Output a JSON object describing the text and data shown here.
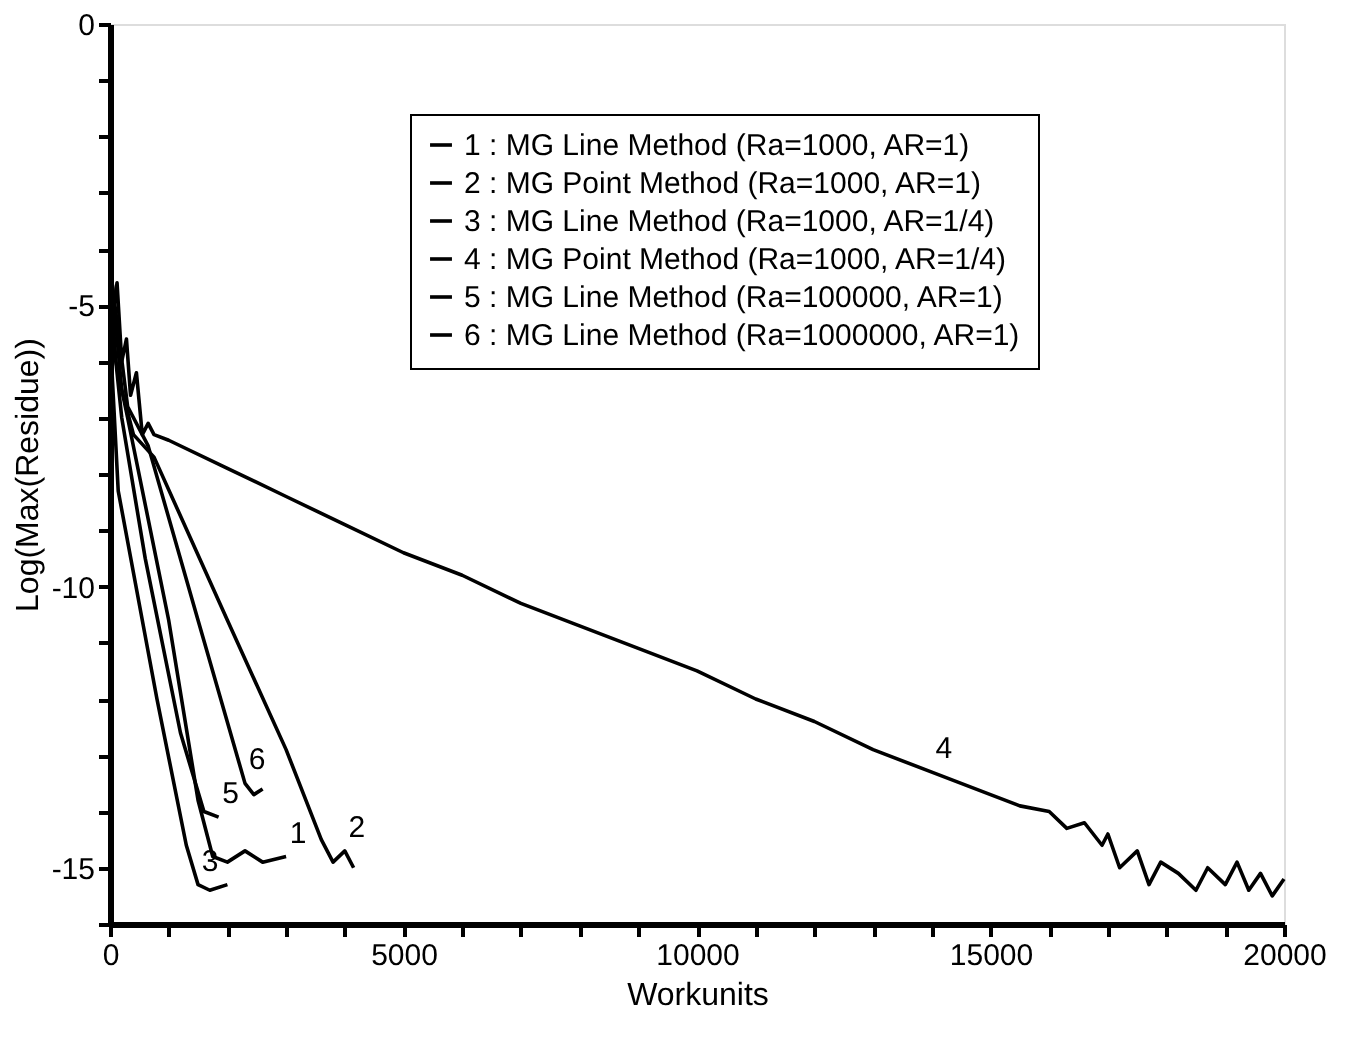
{
  "chart_data": {
    "type": "line",
    "xlabel": "Workunits",
    "ylabel": "Log(Max(Residue))",
    "xlim": [
      0,
      20000
    ],
    "xticks": [
      0,
      {
        "value": 1000,
        "label": null
      },
      {
        "value": 2000,
        "label": null
      },
      {
        "value": 3000,
        "label": null
      },
      {
        "value": 4000,
        "label": null
      },
      5000,
      {
        "value": 6000,
        "label": null
      },
      {
        "value": 7000,
        "label": null
      },
      {
        "value": 8000,
        "label": null
      },
      {
        "value": 9000,
        "label": null
      },
      10000,
      {
        "value": 11000,
        "label": null
      },
      {
        "value": 12000,
        "label": null
      },
      {
        "value": 13000,
        "label": null
      },
      {
        "value": 14000,
        "label": null
      },
      15000,
      {
        "value": 16000,
        "label": null
      },
      {
        "value": 17000,
        "label": null
      },
      {
        "value": 18000,
        "label": null
      },
      {
        "value": 19000,
        "label": null
      },
      20000
    ],
    "ylim": [
      -16,
      0
    ],
    "yticks": [
      0,
      {
        "value": -1,
        "label": null
      },
      {
        "value": -2,
        "label": null
      },
      {
        "value": -3,
        "label": null
      },
      {
        "value": -4,
        "label": null
      },
      -5,
      {
        "value": -6,
        "label": null
      },
      {
        "value": -7,
        "label": null
      },
      {
        "value": -8,
        "label": null
      },
      {
        "value": -9,
        "label": null
      },
      -10,
      {
        "value": -11,
        "label": null
      },
      {
        "value": -12,
        "label": null
      },
      {
        "value": -13,
        "label": null
      },
      {
        "value": -14,
        "label": null
      },
      -15,
      {
        "value": -16,
        "label": null
      }
    ],
    "grid": false,
    "legend": "top right",
    "marker": "none",
    "line_style": "solid",
    "series": [
      {
        "name": "1 : MG Line Method (Ra=1000, AR=1)",
        "color": "#000000",
        "x": [
          0,
          100,
          300,
          1000,
          1500,
          1750,
          2000,
          2300,
          2600,
          3000
        ],
        "values": [
          -4.5,
          -6.0,
          -7.0,
          -10.6,
          -13.8,
          -14.8,
          -14.9,
          -14.7,
          -14.9,
          -14.8
        ]
      },
      {
        "name": "2 : MG Point Method (Ra=1000, AR=1)",
        "color": "#000000",
        "x": [
          0,
          200,
          400,
          750,
          2000,
          3000,
          3600,
          3800,
          4000,
          4150
        ],
        "values": [
          -4.2,
          -6.5,
          -7.3,
          -7.7,
          -10.6,
          -12.9,
          -14.5,
          -14.9,
          -14.7,
          -15.0
        ]
      },
      {
        "name": "3 : MG Line Method (Ra=1000, AR=1/4)",
        "color": "#000000",
        "x": [
          0,
          140,
          800,
          1300,
          1500,
          1700,
          2000
        ],
        "values": [
          -5.5,
          -8.3,
          -12.0,
          -14.6,
          -15.3,
          -15.4,
          -15.3
        ]
      },
      {
        "name": "4 : MG Point Method (Ra=1000, AR=1/4)",
        "color": "#000000",
        "x": [
          0,
          50,
          120,
          200,
          280,
          350,
          450,
          550,
          650,
          750,
          1000,
          2000,
          3000,
          4000,
          5000,
          6000,
          7000,
          8000,
          9000,
          10000,
          11000,
          12000,
          13000,
          14000,
          15000,
          15500,
          16000,
          16300,
          16600,
          16900,
          17000,
          17200,
          17500,
          17700,
          17900,
          18200,
          18500,
          18700,
          19000,
          19200,
          19400,
          19600,
          19800,
          20000
        ],
        "values": [
          -4.0,
          -5.2,
          -4.6,
          -6.0,
          -5.6,
          -6.6,
          -6.2,
          -7.3,
          -7.1,
          -7.3,
          -7.4,
          -7.9,
          -8.4,
          -8.9,
          -9.4,
          -9.8,
          -10.3,
          -10.7,
          -11.1,
          -11.5,
          -12.0,
          -12.4,
          -12.9,
          -13.3,
          -13.7,
          -13.9,
          -14.0,
          -14.3,
          -14.2,
          -14.6,
          -14.4,
          -15.0,
          -14.7,
          -15.3,
          -14.9,
          -15.1,
          -15.4,
          -15.0,
          -15.3,
          -14.9,
          -15.4,
          -15.1,
          -15.5,
          -15.2
        ]
      },
      {
        "name": "5 : MG Line Method (Ra=100000, AR=1)",
        "color": "#000000",
        "x": [
          0,
          200,
          600,
          1200,
          1600,
          1850
        ],
        "values": [
          -5.0,
          -7.0,
          -9.5,
          -12.6,
          -14.0,
          -14.1
        ]
      },
      {
        "name": "6 : MG Line Method (Ra=1000000, AR=1)",
        "color": "#000000",
        "x": [
          0,
          300,
          650,
          1500,
          2300,
          2450,
          2600
        ],
        "values": [
          -4.3,
          -6.8,
          -7.5,
          -10.6,
          -13.5,
          -13.7,
          -13.6
        ]
      }
    ],
    "annotations": [
      {
        "text": "1",
        "x": 3000,
        "y": -14.8
      },
      {
        "text": "2",
        "x": 4000,
        "y": -14.7
      },
      {
        "text": "3",
        "x": 1500,
        "y": -15.3
      },
      {
        "text": "4",
        "x": 14000,
        "y": -13.3
      },
      {
        "text": "5",
        "x": 1850,
        "y": -14.1
      },
      {
        "text": "6",
        "x": 2300,
        "y": -13.5
      }
    ]
  }
}
